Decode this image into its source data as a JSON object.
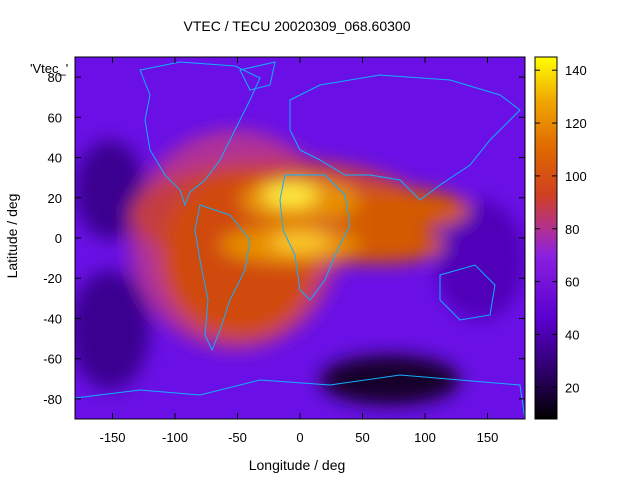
{
  "chart_data": {
    "type": "heatmap",
    "title": "VTEC / TECU 20020309_068.60300",
    "key_label": "'Vtec_'",
    "xlabel": "Longitude / deg",
    "ylabel": "Latitude / deg",
    "xlim": [
      -180,
      180
    ],
    "ylim": [
      -90,
      90
    ],
    "x_ticks": [
      -150,
      -100,
      -50,
      0,
      50,
      100,
      150
    ],
    "y_ticks": [
      80,
      60,
      40,
      20,
      0,
      -20,
      -40,
      -60,
      -80
    ],
    "colorbar": {
      "range": [
        8,
        145
      ],
      "ticks": [
        20,
        40,
        60,
        80,
        100,
        120,
        140
      ],
      "palette": [
        "#000000",
        "#3b00a8",
        "#7a10f0",
        "#b1309a",
        "#d44a2a",
        "#e07000",
        "#f0b000",
        "#ffff00"
      ]
    },
    "grid": false,
    "description_peaks": [
      {
        "lon": 0,
        "lat": 20,
        "vtec": 140
      },
      {
        "lon": 30,
        "lat": 0,
        "vtec": 120
      },
      {
        "lon": -40,
        "lat": -10,
        "vtec": 110
      }
    ]
  }
}
